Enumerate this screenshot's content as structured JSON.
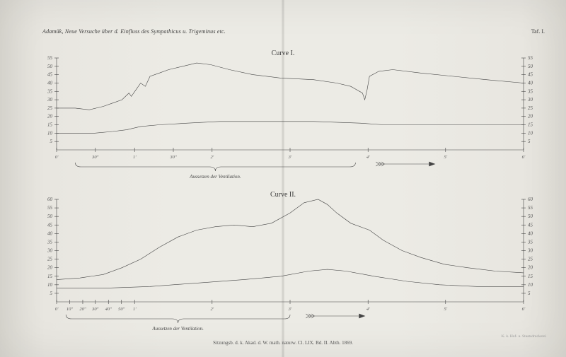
{
  "header": {
    "left": "Adamük, Neue Versuche über d. Einfluss des Sympathicus u. Trigeminus etc.",
    "right": "Taf. I."
  },
  "footer": "Sitzungsb. d. k. Akad. d. W. math. naturw. Cl. LIX. Bd. II. Abth. 1869.",
  "printer": "K. k. Hof- u. Staatsdruckerei",
  "annotation1": "Aussetzen der Ventilation.",
  "annotation2": "Aussetzen der Ventilation.",
  "chart1": {
    "title": "Curve I.",
    "ylim": [
      0,
      55
    ],
    "ytick_step": 5,
    "xticks": [
      {
        "pos": 0,
        "label": "0'"
      },
      {
        "pos": 0.083,
        "label": "30\""
      },
      {
        "pos": 0.167,
        "label": "1'"
      },
      {
        "pos": 0.25,
        "label": "30\""
      },
      {
        "pos": 0.333,
        "label": "2'"
      },
      {
        "pos": 0.5,
        "label": "3'"
      },
      {
        "pos": 0.667,
        "label": "4'"
      },
      {
        "pos": 0.833,
        "label": "5'"
      },
      {
        "pos": 1.0,
        "label": "6'"
      }
    ],
    "bracket": {
      "start": 0.04,
      "end": 0.64
    },
    "arrow": {
      "start": 0.69,
      "end": 0.81
    },
    "series_upper": [
      [
        0,
        25
      ],
      [
        0.04,
        25
      ],
      [
        0.07,
        24
      ],
      [
        0.1,
        26
      ],
      [
        0.12,
        28
      ],
      [
        0.14,
        30
      ],
      [
        0.155,
        34
      ],
      [
        0.16,
        32
      ],
      [
        0.17,
        36
      ],
      [
        0.18,
        40
      ],
      [
        0.19,
        38
      ],
      [
        0.2,
        44
      ],
      [
        0.22,
        46
      ],
      [
        0.24,
        48
      ],
      [
        0.27,
        50
      ],
      [
        0.3,
        52
      ],
      [
        0.33,
        51
      ],
      [
        0.37,
        48
      ],
      [
        0.42,
        45
      ],
      [
        0.48,
        43
      ],
      [
        0.55,
        42
      ],
      [
        0.6,
        40
      ],
      [
        0.63,
        38
      ],
      [
        0.655,
        34
      ],
      [
        0.66,
        30
      ],
      [
        0.665,
        36
      ],
      [
        0.67,
        44
      ],
      [
        0.69,
        47
      ],
      [
        0.72,
        48
      ],
      [
        0.78,
        46
      ],
      [
        0.85,
        44
      ],
      [
        0.92,
        42
      ],
      [
        1.0,
        40
      ]
    ],
    "series_lower": [
      [
        0,
        10
      ],
      [
        0.08,
        10
      ],
      [
        0.12,
        11
      ],
      [
        0.15,
        12
      ],
      [
        0.18,
        14
      ],
      [
        0.22,
        15
      ],
      [
        0.28,
        16
      ],
      [
        0.35,
        17
      ],
      [
        0.45,
        17
      ],
      [
        0.55,
        17
      ],
      [
        0.65,
        16
      ],
      [
        0.7,
        15
      ],
      [
        0.78,
        15
      ],
      [
        0.88,
        15
      ],
      [
        1.0,
        15
      ]
    ]
  },
  "chart2": {
    "title": "Curve II.",
    "ylim": [
      0,
      60
    ],
    "ytick_step": 5,
    "xticks": [
      {
        "pos": 0,
        "label": "0'"
      },
      {
        "pos": 0.028,
        "label": "10\""
      },
      {
        "pos": 0.056,
        "label": "20\""
      },
      {
        "pos": 0.083,
        "label": "30\""
      },
      {
        "pos": 0.111,
        "label": "40\""
      },
      {
        "pos": 0.139,
        "label": "50\""
      },
      {
        "pos": 0.167,
        "label": "1'"
      },
      {
        "pos": 0.333,
        "label": "2'"
      },
      {
        "pos": 0.5,
        "label": "3'"
      },
      {
        "pos": 0.667,
        "label": "4'"
      },
      {
        "pos": 0.833,
        "label": "5'"
      },
      {
        "pos": 1.0,
        "label": "6'"
      }
    ],
    "bracket": {
      "start": 0.02,
      "end": 0.5
    },
    "arrow": {
      "start": 0.54,
      "end": 0.66
    },
    "series_upper": [
      [
        0,
        13
      ],
      [
        0.05,
        14
      ],
      [
        0.1,
        16
      ],
      [
        0.14,
        20
      ],
      [
        0.18,
        25
      ],
      [
        0.22,
        32
      ],
      [
        0.26,
        38
      ],
      [
        0.3,
        42
      ],
      [
        0.34,
        44
      ],
      [
        0.38,
        45
      ],
      [
        0.42,
        44
      ],
      [
        0.46,
        46
      ],
      [
        0.5,
        52
      ],
      [
        0.53,
        58
      ],
      [
        0.56,
        60
      ],
      [
        0.58,
        57
      ],
      [
        0.6,
        52
      ],
      [
        0.63,
        46
      ],
      [
        0.67,
        42
      ],
      [
        0.7,
        36
      ],
      [
        0.74,
        30
      ],
      [
        0.78,
        26
      ],
      [
        0.83,
        22
      ],
      [
        0.88,
        20
      ],
      [
        0.94,
        18
      ],
      [
        1.0,
        17
      ]
    ],
    "series_lower": [
      [
        0,
        8
      ],
      [
        0.1,
        8
      ],
      [
        0.2,
        9
      ],
      [
        0.3,
        11
      ],
      [
        0.4,
        13
      ],
      [
        0.48,
        15
      ],
      [
        0.54,
        18
      ],
      [
        0.58,
        19
      ],
      [
        0.62,
        18
      ],
      [
        0.68,
        15
      ],
      [
        0.75,
        12
      ],
      [
        0.82,
        10
      ],
      [
        0.9,
        9
      ],
      [
        1.0,
        9
      ]
    ]
  },
  "style": {
    "line_color": "#444444",
    "bg_color": "#ecebe5"
  }
}
